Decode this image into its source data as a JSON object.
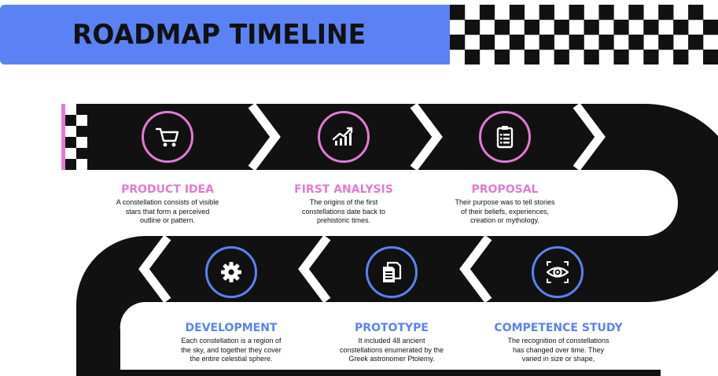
{
  "header": {
    "title": "ROADMAP TIMELINE",
    "banner_color": "#5b82f5"
  },
  "colors": {
    "road": "#111111",
    "pink": "#e37ad3",
    "blue": "#5b82f5",
    "chevron": "#ffffff"
  },
  "steps": [
    {
      "title": "PRODUCT IDEA",
      "description": "A constellation consists of visible\nstars that form a perceived\noutline or pattern.",
      "icon": "shopping-cart-icon",
      "color": "pink"
    },
    {
      "title": "FIRST ANALYSIS",
      "description": "The origins of the first\nconstellations date back to\nprehistoric times.",
      "icon": "growth-chart-icon",
      "color": "pink"
    },
    {
      "title": "PROPOSAL",
      "description": "Their purpose was to tell stories\nof their beliefs, experiences,\ncreation or mythology.",
      "icon": "clipboard-icon",
      "color": "pink"
    },
    {
      "title": "DEVELOPMENT",
      "description": "Each constellation is a region of\nthe sky, and together they cover\nthe entire celestial sphere.",
      "icon": "gear-icon",
      "color": "blue"
    },
    {
      "title": "PROTOTYPE",
      "description": "It included 48 ancient\nconstellations enumerated by the\nGreek astronomer Ptolemy.",
      "icon": "documents-icon",
      "color": "blue"
    },
    {
      "title": "COMPETENCE STUDY",
      "description": "The recognition of constellations\nhas changed over time. They\nvaried in size or shape,",
      "icon": "eye-icon",
      "color": "blue"
    }
  ]
}
